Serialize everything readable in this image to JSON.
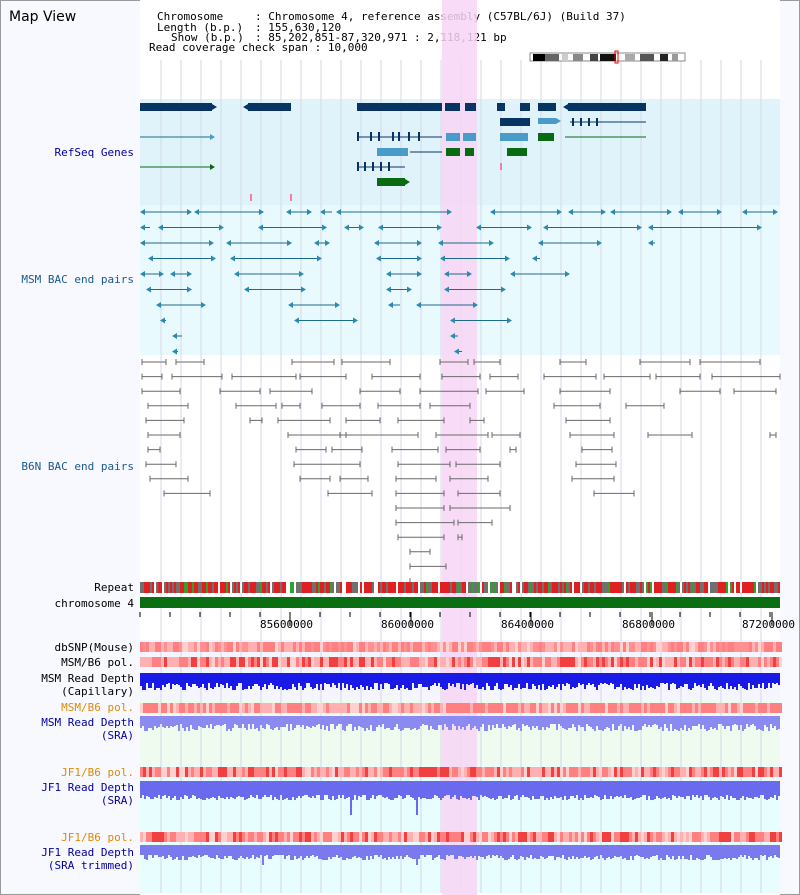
{
  "page": {
    "title": "Map View"
  },
  "info": {
    "chromosome_key": "Chromosome",
    "chromosome_val": "Chromosome 4, reference assembly (C57BL/6J) (Build 37)",
    "length_key": "Length (b.p.)",
    "length_val": "155,630,120",
    "show_key": "Show (b.p.)",
    "show_val": "85,202,851-87,320,971 : 2,118,121 bp",
    "coverage_key": "Read coverage check span",
    "coverage_val": "10,000"
  },
  "tracks": {
    "refseq": "RefSeq Genes",
    "msm_bac": "MSM BAC end pairs",
    "b6n_bac": "B6N BAC end pairs",
    "repeat": "Repeat",
    "chromosome": "chromosome 4",
    "dbsnp": "dbSNP(Mouse)",
    "msm_b6_pol": "MSM/B6 pol.",
    "msm_depth_cap_1": "MSM Read Depth",
    "msm_depth_cap_2": "(Capillary)",
    "msm_b6_pol_sra": "MSM/B6 pol.",
    "msm_depth_sra_1": "MSM Read Depth",
    "msm_depth_sra_2": "(SRA)",
    "jf1_b6_pol": "JF1/B6 pol.",
    "jf1_depth_sra_1": "JF1 Read Depth",
    "jf1_depth_sra_2": "(SRA)",
    "jf1_b6_pol_trim": "JF1/B6 pol.",
    "jf1_depth_trim_1": "JF1 Read Depth",
    "jf1_depth_trim_2": "(SRA trimmed)"
  },
  "axis": {
    "ticks": [
      "85600000",
      "86000000",
      "86400000",
      "86800000",
      "87200000"
    ]
  },
  "colors": {
    "refseq_bg": "#e0f3fa",
    "bac_bg": "#e8fafd",
    "highlight": "#f7d5f5",
    "gene_dark": "#083464",
    "gene_mid": "#4a9cc8",
    "gene_green": "#0a6a12",
    "msm_bac_line": "#1e6a8a",
    "b6n_bac_line": "#6a6a6a",
    "chromosome_bar": "#0a6e12",
    "snp_red": "#f04040",
    "depth_blue": "#1a1ae6",
    "depth_light": "#8a8af0",
    "label_blue": "#0000a0",
    "label_orange": "#e08a00"
  }
}
